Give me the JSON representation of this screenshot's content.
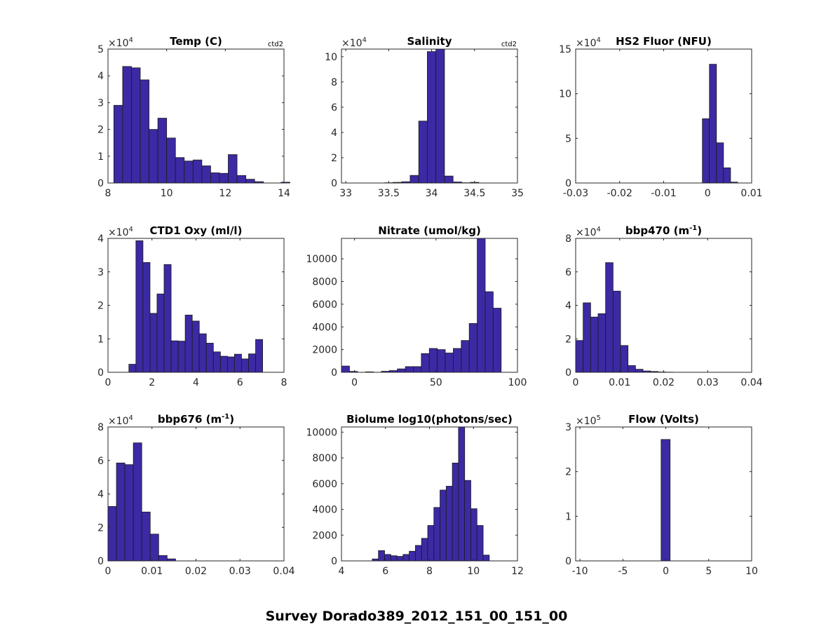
{
  "figure_title": "Survey Dorado389_2012_151_00_151_00",
  "colors": {
    "bar_fill": "#3B2AA3",
    "bar_edge": "#1a1a1a",
    "axis": "#262626",
    "background": "#ffffff"
  },
  "chart_data": [
    {
      "type": "bar",
      "title": "Temp (C)",
      "title_sup": "",
      "title_suffix": "",
      "note": "ctd2",
      "exponent_base": "×10",
      "exponent": "4",
      "xlim": [
        8,
        14
      ],
      "ylim": [
        0,
        5
      ],
      "xticks": [
        8,
        10,
        12,
        14
      ],
      "xtick_labels": [
        "8",
        "10",
        "12",
        "14"
      ],
      "yticks": [
        0,
        1,
        2,
        3,
        4,
        5
      ],
      "ytick_labels": [
        "0",
        "1",
        "2",
        "3",
        "4",
        "5"
      ],
      "bin_start": 8.2,
      "bin_width": 0.3,
      "values": [
        2.9,
        4.35,
        4.3,
        3.85,
        2.0,
        2.42,
        1.68,
        0.95,
        0.82,
        0.86,
        0.64,
        0.38,
        0.36,
        1.06,
        0.28,
        0.14,
        0.05,
        0.0,
        0.0,
        0.03
      ]
    },
    {
      "type": "bar",
      "title": "Salinity",
      "title_sup": "",
      "title_suffix": "",
      "note": "ctd2",
      "exponent_base": "×10",
      "exponent": "4",
      "xlim": [
        32.95,
        35
      ],
      "ylim": [
        0,
        10.6
      ],
      "xticks": [
        33,
        33.5,
        34,
        34.5,
        35
      ],
      "xtick_labels": [
        "33",
        "33.5",
        "34",
        "34.5",
        "35"
      ],
      "yticks": [
        0,
        2,
        4,
        6,
        8,
        10
      ],
      "ytick_labels": [
        "0",
        "2",
        "4",
        "6",
        "8",
        "10"
      ],
      "bin_start": 32.95,
      "bin_width": 0.1,
      "values": [
        0,
        0,
        0,
        0,
        0,
        0.02,
        0.05,
        0.1,
        0.6,
        4.9,
        10.4,
        10.7,
        0.55,
        0.08,
        0.02,
        0.05,
        0.0,
        0.0,
        0.0,
        0.0
      ]
    },
    {
      "type": "bar",
      "title": "HS2 Fluor (NFU)",
      "title_sup": "",
      "title_suffix": "",
      "note": "",
      "exponent_base": "×10",
      "exponent": "4",
      "xlim": [
        -0.03,
        0.01
      ],
      "ylim": [
        0,
        15
      ],
      "xticks": [
        -0.03,
        -0.02,
        -0.01,
        0,
        0.01
      ],
      "xtick_labels": [
        "-0.03",
        "-0.02",
        "-0.01",
        "0",
        "0.01"
      ],
      "yticks": [
        0,
        5,
        10,
        15
      ],
      "ytick_labels": [
        "0",
        "5",
        "10",
        "15"
      ],
      "bin_start": -0.0012,
      "bin_width": 0.0016,
      "values": [
        7.2,
        13.3,
        4.5,
        1.7,
        0.1
      ]
    },
    {
      "type": "bar",
      "title": "CTD1 Oxy (ml/l)",
      "title_sup": "",
      "title_suffix": "",
      "note": "",
      "exponent_base": "×10",
      "exponent": "4",
      "xlim": [
        0,
        8
      ],
      "ylim": [
        0,
        4
      ],
      "xticks": [
        0,
        2,
        4,
        6,
        8
      ],
      "xtick_labels": [
        "0",
        "2",
        "4",
        "6",
        "8"
      ],
      "yticks": [
        0,
        1,
        2,
        3,
        4
      ],
      "ytick_labels": [
        "0",
        "1",
        "2",
        "3",
        "4"
      ],
      "bin_start": 0.95,
      "bin_width": 0.32,
      "values": [
        0.24,
        3.93,
        3.28,
        1.76,
        2.34,
        3.22,
        0.94,
        0.93,
        1.71,
        1.53,
        1.15,
        0.87,
        0.61,
        0.48,
        0.46,
        0.54,
        0.4,
        0.55,
        0.98
      ]
    },
    {
      "type": "bar",
      "title": "Nitrate (umol/kg)",
      "title_sup": "",
      "title_suffix": "",
      "note": "",
      "exponent_base": "",
      "exponent": "",
      "xlim": [
        -8,
        100
      ],
      "ylim": [
        0,
        11800
      ],
      "xticks": [
        0,
        50,
        100
      ],
      "xtick_labels": [
        "0",
        "50",
        "100"
      ],
      "yticks": [
        0,
        2000,
        4000,
        6000,
        8000,
        10000
      ],
      "ytick_labels": [
        "0",
        "2000",
        "4000",
        "6000",
        "8000",
        "10000"
      ],
      "bin_start": -8,
      "bin_width": 4.9,
      "values": [
        550,
        80,
        0,
        40,
        0,
        90,
        150,
        300,
        500,
        500,
        1650,
        2100,
        2000,
        1700,
        2100,
        2800,
        4300,
        11800,
        7100,
        5650
      ]
    },
    {
      "type": "bar",
      "title": "bbp470 (m",
      "title_sup": "-1",
      "title_suffix": ")",
      "note": "",
      "exponent_base": "×10",
      "exponent": "4",
      "xlim": [
        0,
        0.04
      ],
      "ylim": [
        0,
        8
      ],
      "xticks": [
        0,
        0.01,
        0.02,
        0.03,
        0.04
      ],
      "xtick_labels": [
        "0",
        "0.01",
        "0.02",
        "0.03",
        "0.04"
      ],
      "yticks": [
        0,
        2,
        4,
        6,
        8
      ],
      "ytick_labels": [
        "0",
        "2",
        "4",
        "6",
        "8"
      ],
      "bin_start": 0,
      "bin_width": 0.0017,
      "values": [
        1.9,
        4.15,
        3.3,
        3.5,
        6.55,
        4.85,
        1.6,
        0.4,
        0.18,
        0.08,
        0.05,
        0.02,
        0.01
      ]
    },
    {
      "type": "bar",
      "title": "bbp676 (m",
      "title_sup": "-1",
      "title_suffix": ")",
      "note": "",
      "exponent_base": "×10",
      "exponent": "4",
      "xlim": [
        0,
        0.04
      ],
      "ylim": [
        0,
        8
      ],
      "xticks": [
        0,
        0.01,
        0.02,
        0.03,
        0.04
      ],
      "xtick_labels": [
        "0",
        "0.01",
        "0.02",
        "0.03",
        "0.04"
      ],
      "yticks": [
        0,
        2,
        4,
        6,
        8
      ],
      "ytick_labels": [
        "0",
        "2",
        "4",
        "6",
        "8"
      ],
      "bin_start": 0,
      "bin_width": 0.00192,
      "values": [
        3.25,
        5.85,
        5.75,
        7.05,
        2.92,
        1.6,
        0.32,
        0.12
      ]
    },
    {
      "type": "bar",
      "title": "Biolume log10(photons/sec)",
      "title_sup": "",
      "title_suffix": "",
      "note": "",
      "exponent_base": "",
      "exponent": "",
      "xlim": [
        4,
        12
      ],
      "ylim": [
        0,
        10400
      ],
      "xticks": [
        4,
        6,
        8,
        10,
        12
      ],
      "xtick_labels": [
        "4",
        "6",
        "8",
        "10",
        "12"
      ],
      "yticks": [
        0,
        2000,
        4000,
        6000,
        8000,
        10000
      ],
      "ytick_labels": [
        "0",
        "2000",
        "4000",
        "6000",
        "8000",
        "10000"
      ],
      "bin_start": 5.4,
      "bin_width": 0.28,
      "values": [
        150,
        800,
        500,
        400,
        350,
        500,
        750,
        1200,
        1750,
        2750,
        4150,
        5500,
        5800,
        7600,
        10400,
        6250,
        4050,
        2750,
        450
      ]
    },
    {
      "type": "bar",
      "title": "Flow (Volts)",
      "title_sup": "",
      "title_suffix": "",
      "note": "",
      "exponent_base": "×10",
      "exponent": "5",
      "xlim": [
        -10.5,
        10
      ],
      "ylim": [
        0,
        3
      ],
      "xticks": [
        -10,
        -5,
        0,
        5,
        10
      ],
      "xtick_labels": [
        "-10",
        "-5",
        "0",
        "5",
        "10"
      ],
      "yticks": [
        0,
        1,
        2,
        3
      ],
      "ytick_labels": [
        "0",
        "1",
        "2",
        "3"
      ],
      "bin_start": -0.55,
      "bin_width": 1.05,
      "values": [
        2.72
      ]
    }
  ]
}
